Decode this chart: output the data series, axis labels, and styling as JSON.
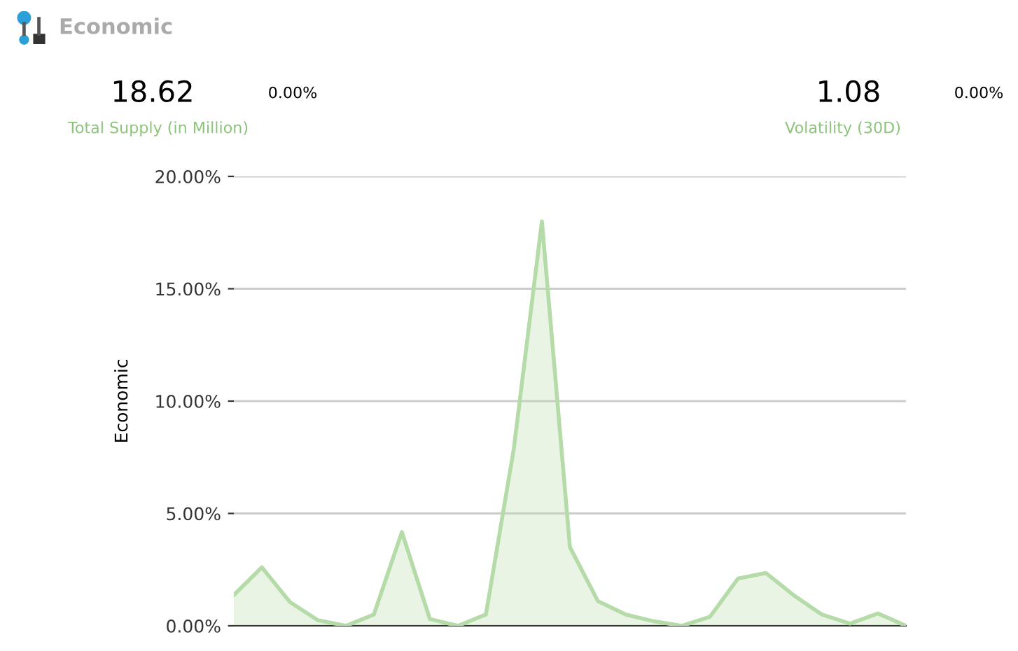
{
  "chart_data": {
    "type": "area",
    "title": "Economic",
    "ylabel": "Economic",
    "annotations": [
      "18.62",
      "0.00%",
      "Total Supply (in Million)",
      "1.08",
      "0.00%",
      "Volatility (30D)"
    ],
    "categories": [
      null,
      null,
      null,
      null,
      null,
      null,
      null,
      null,
      null,
      null,
      null,
      null,
      null,
      null,
      null,
      null,
      null,
      null,
      null,
      null,
      null,
      null,
      null,
      null,
      null
    ],
    "series": [
      {
        "color": "#b5dba8",
        "values": [
          1.37,
          2.6,
          1.06,
          0.25,
          0,
          0.5,
          4.17,
          0.3,
          0,
          0.5,
          7.9,
          18.0,
          3.5,
          1.1,
          0.5,
          0.2,
          0,
          0.4,
          2.1,
          2.35,
          1.35,
          0.5,
          0.1,
          0.55,
          0
        ]
      }
    ],
    "ylim": [
      0,
      20
    ],
    "yticks": [
      {
        "value": 0,
        "label": "0.00%"
      },
      {
        "value": 5,
        "label": "5.00%"
      },
      {
        "value": 10,
        "label": "10.00%"
      },
      {
        "value": 15,
        "label": "15.00%"
      },
      {
        "value": 20,
        "label": "20.00%"
      }
    ],
    "grid": "y",
    "tick_labels": "y",
    "legend": false
  }
}
